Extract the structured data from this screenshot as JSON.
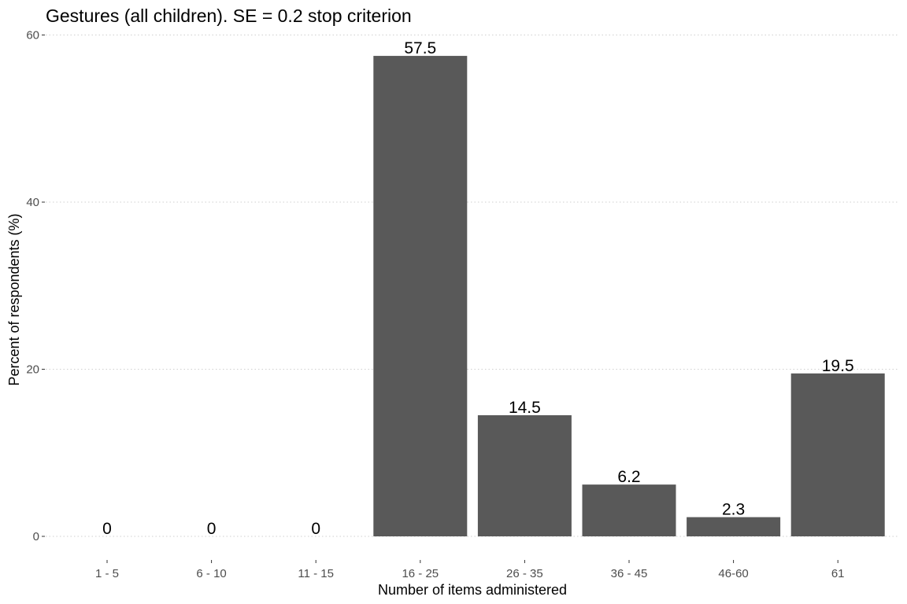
{
  "chart_data": {
    "type": "bar",
    "title": "Gestures (all children). SE = 0.2 stop criterion",
    "xlabel": "Number of items administered",
    "ylabel": "Percent of respondents (%)",
    "categories": [
      "1 - 5",
      "6 - 10",
      "11 - 15",
      "16 - 25",
      "26 - 35",
      "36 - 45",
      "46-60",
      "61"
    ],
    "values": [
      0,
      0,
      0,
      57.5,
      14.5,
      6.2,
      2.3,
      19.5
    ],
    "data_labels": [
      "0",
      "0",
      "0",
      "57.5",
      "14.5",
      "6.2",
      "2.3",
      "19.5"
    ],
    "y_ticks": [
      0,
      20,
      40,
      60
    ],
    "y_tick_labels": [
      "0",
      "20",
      "40",
      "60"
    ],
    "ylim": [
      0,
      60
    ],
    "grid": true,
    "legend": "none",
    "bar_color": "#595959"
  }
}
